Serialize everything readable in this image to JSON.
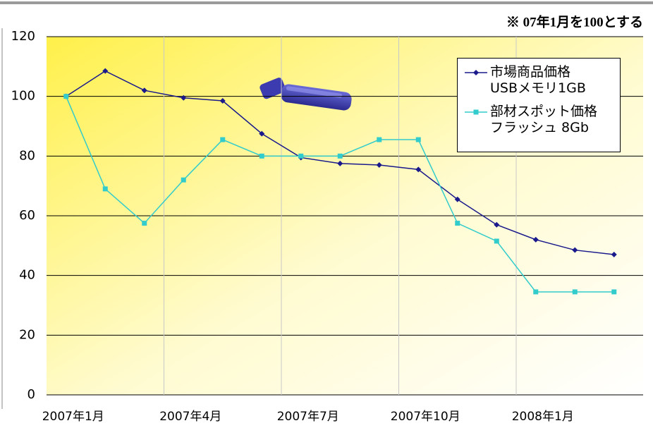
{
  "chart_data": {
    "type": "line",
    "note": "※ 07年1月を100とする",
    "categories": [
      "2007年1月",
      null,
      null,
      "2007年4月",
      null,
      null,
      "2007年7月",
      null,
      null,
      "2007年10月",
      null,
      null,
      "2008年1月",
      null,
      null
    ],
    "series": [
      {
        "name": "市場商品価格\nUSBメモリ1GB",
        "color": "#1a1a8c",
        "values": [
          100,
          108.5,
          102,
          99.5,
          98.5,
          87.5,
          79.5,
          77.5,
          77,
          75.5,
          65.5,
          57,
          52,
          48.5,
          47
        ]
      },
      {
        "name": "部材スポット価格\nフラッシュ 8Gb",
        "color": "#33cccc",
        "values": [
          100,
          69,
          57.5,
          72,
          85.5,
          80,
          80,
          80,
          85.5,
          85.5,
          57.5,
          51.5,
          34.5,
          34.5,
          34.5
        ]
      }
    ],
    "ylim": [
      0,
      120
    ],
    "yticks": [
      0,
      20,
      40,
      60,
      80,
      100,
      120
    ],
    "grid": true
  }
}
